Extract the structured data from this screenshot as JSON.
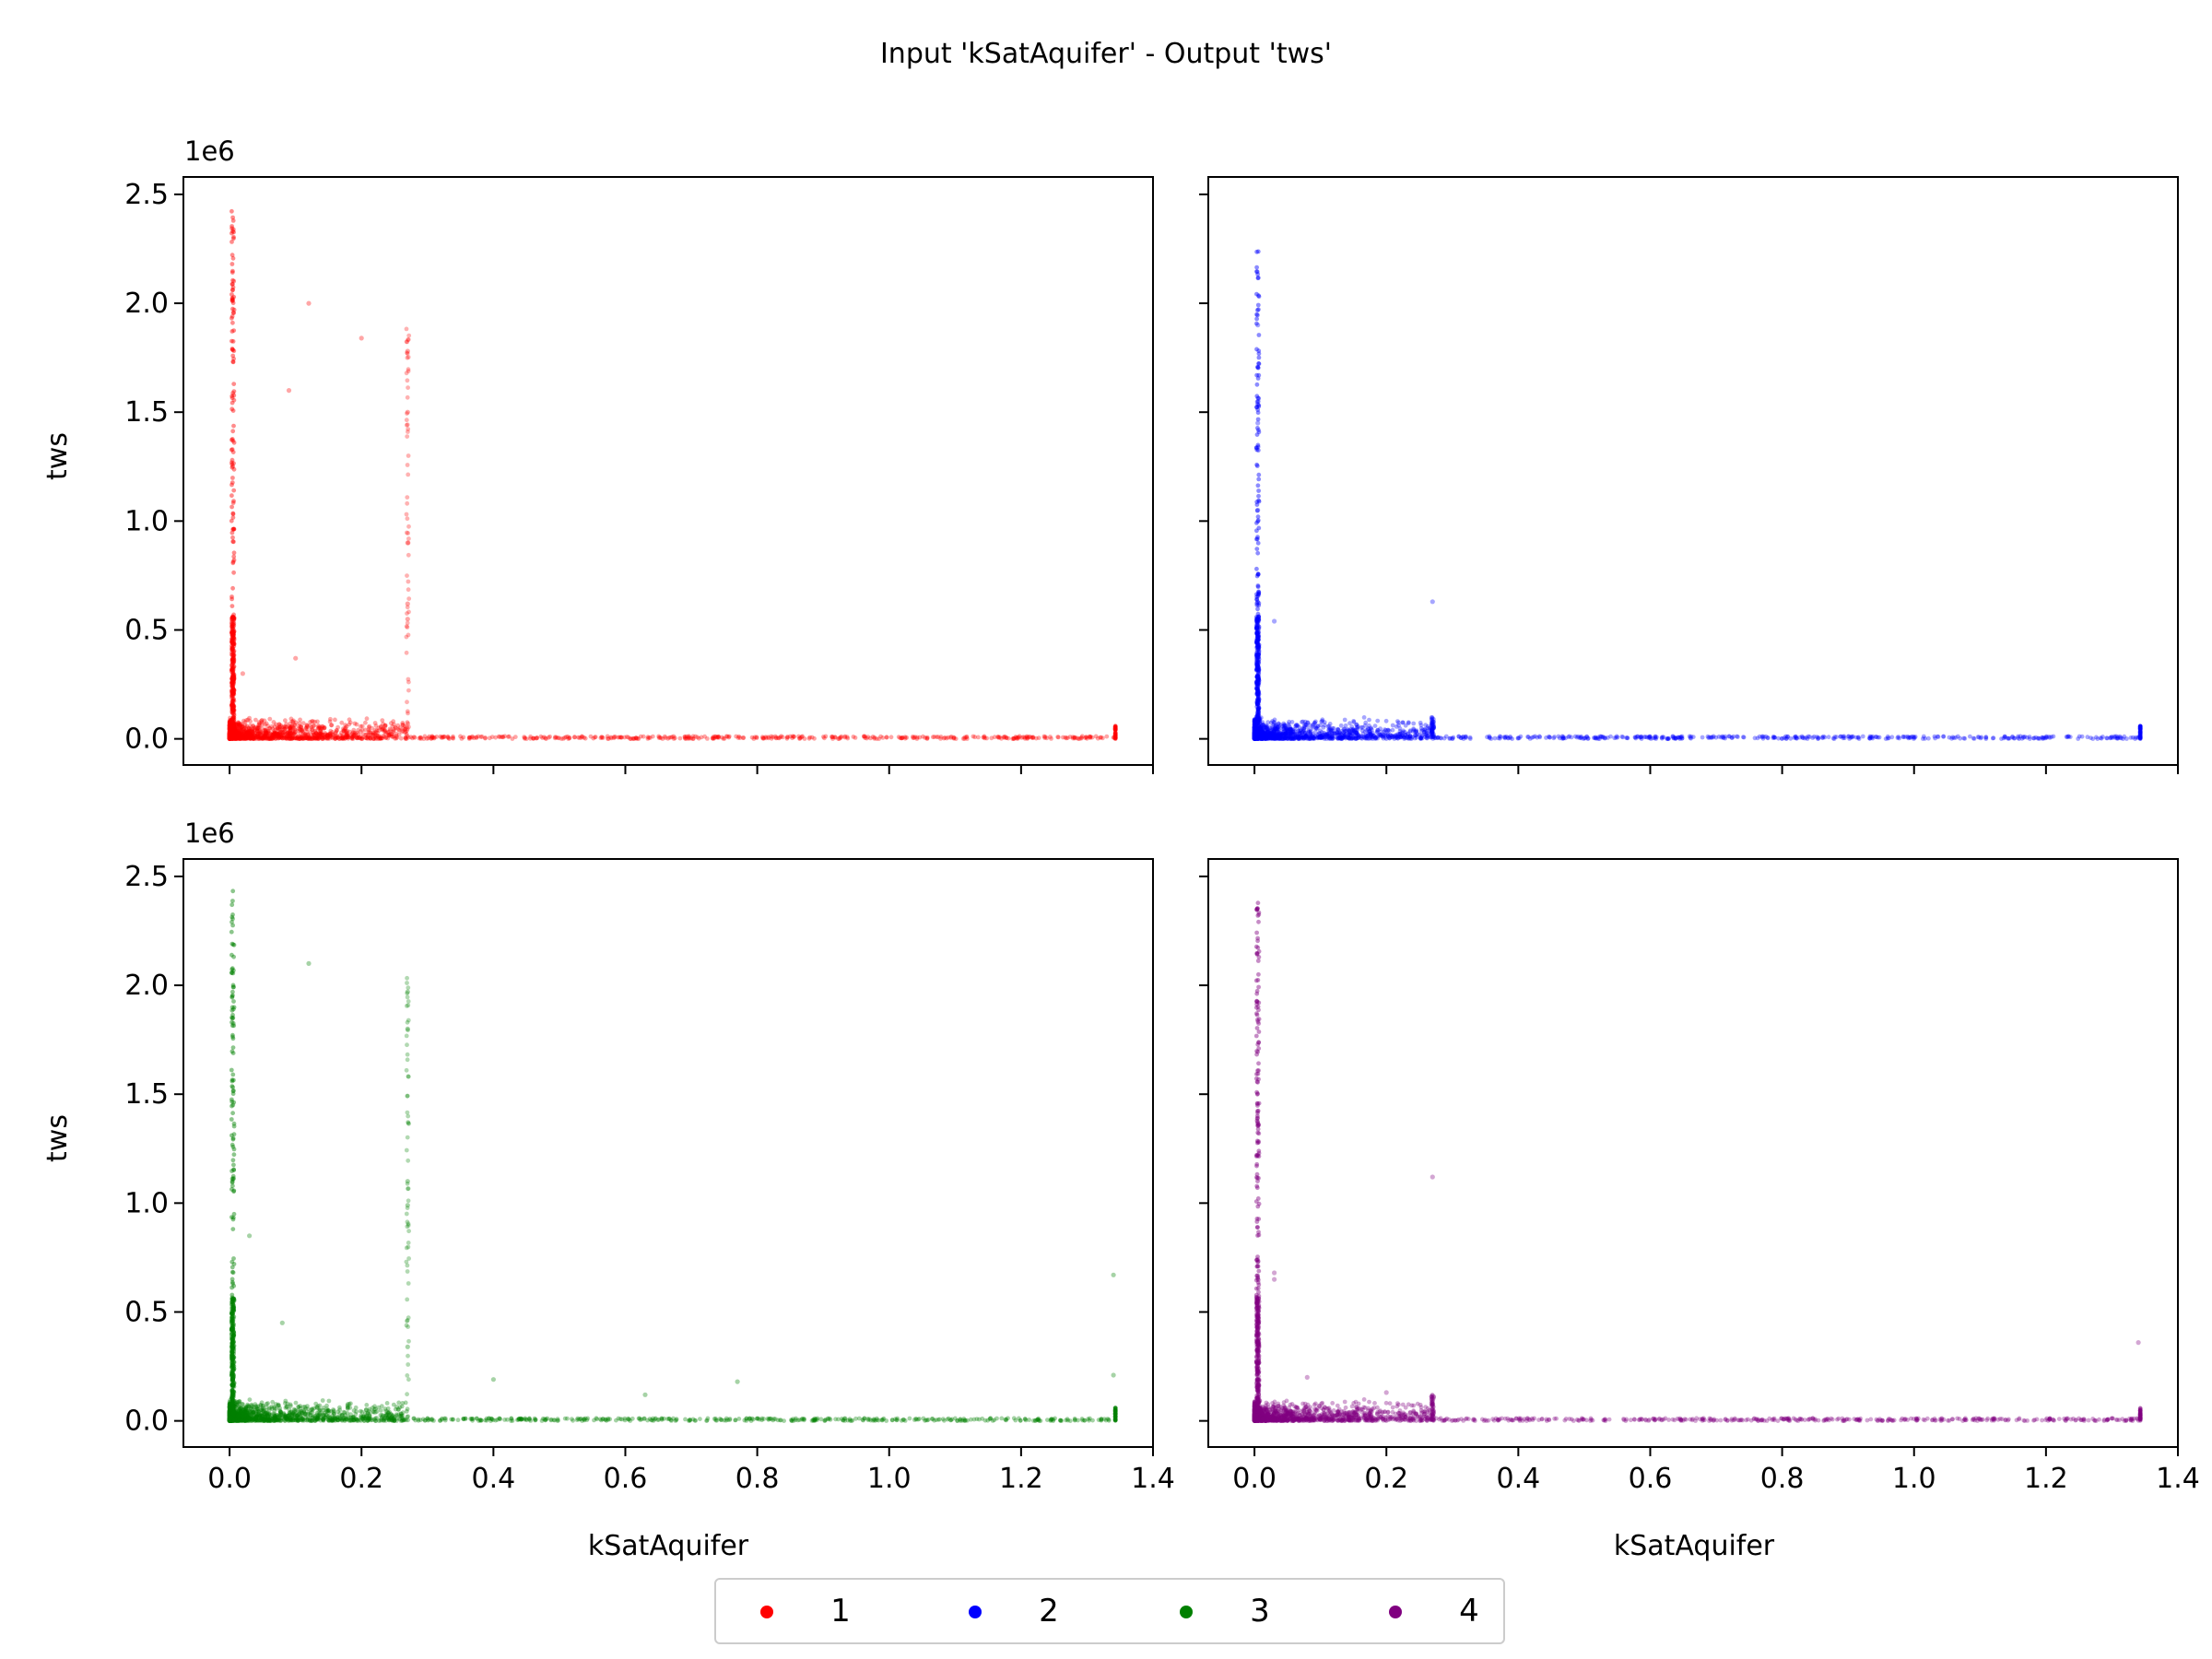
{
  "figure": {
    "title": "Input 'kSatAquifer' - Output 'tws'",
    "offset_label": "1e6"
  },
  "chart_data": {
    "type": "scatter",
    "title": "Input 'kSatAquifer' - Output 'tws'",
    "xlabel": "kSatAquifer",
    "ylabel": "tws",
    "xlim": [
      -0.07,
      1.4
    ],
    "ylim": [
      -0.12,
      2.58
    ],
    "y_scale_multiplier": "1e6",
    "x_ticks": [
      "0.0",
      "0.2",
      "0.4",
      "0.6",
      "0.8",
      "1.0",
      "1.2",
      "1.4"
    ],
    "y_ticks": [
      "0.0",
      "0.5",
      "1.0",
      "1.5",
      "2.0",
      "2.5"
    ],
    "legend": {
      "placement": "bottom-center",
      "entries": [
        "1",
        "2",
        "3",
        "4"
      ]
    },
    "grid": false,
    "panels": [
      {
        "series": "1",
        "color": "#ff0000",
        "column_x": [
          0.005,
          0.27
        ],
        "column_ymax": [
          2.45,
          1.9
        ],
        "outliers": [
          [
            0.12,
            2.0
          ],
          [
            0.2,
            1.84
          ],
          [
            0.09,
            1.6
          ],
          [
            0.1,
            0.37
          ],
          [
            0.27,
            1.78
          ],
          [
            0.27,
            1.5
          ],
          [
            0.27,
            0.9
          ],
          [
            0.27,
            0.62
          ],
          [
            0.27,
            0.55
          ],
          [
            0.02,
            0.3
          ]
        ]
      },
      {
        "series": "2",
        "color": "#0000ff",
        "column_x": [
          0.005,
          0.27
        ],
        "column_ymax": [
          2.26,
          0.1
        ],
        "outliers": [
          [
            0.005,
            1.9
          ],
          [
            0.005,
            1.45
          ],
          [
            0.005,
            1.05
          ],
          [
            0.03,
            0.54
          ],
          [
            0.27,
            0.63
          ]
        ]
      },
      {
        "series": "3",
        "color": "#008000",
        "column_x": [
          0.005,
          0.27
        ],
        "column_ymax": [
          2.46,
          2.08
        ],
        "outliers": [
          [
            0.12,
            2.1
          ],
          [
            0.27,
            1.97
          ],
          [
            0.27,
            1.8
          ],
          [
            0.27,
            1.1
          ],
          [
            0.27,
            0.99
          ],
          [
            0.03,
            0.85
          ],
          [
            0.08,
            0.45
          ],
          [
            0.27,
            0.34
          ],
          [
            1.34,
            0.67
          ],
          [
            0.4,
            0.19
          ],
          [
            0.77,
            0.18
          ],
          [
            1.34,
            0.21
          ],
          [
            0.63,
            0.12
          ]
        ]
      },
      {
        "series": "4",
        "color": "#800080",
        "column_x": [
          0.005,
          0.27
        ],
        "column_ymax": [
          2.4,
          0.12
        ],
        "outliers": [
          [
            0.27,
            1.12
          ],
          [
            0.03,
            0.68
          ],
          [
            0.03,
            0.65
          ],
          [
            1.34,
            0.36
          ],
          [
            0.08,
            0.2
          ],
          [
            0.2,
            0.13
          ]
        ]
      }
    ]
  }
}
